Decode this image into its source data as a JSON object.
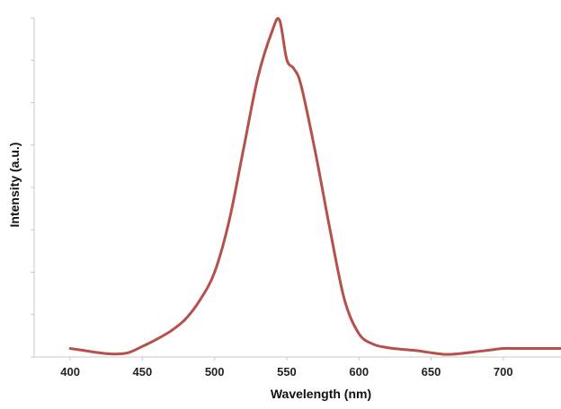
{
  "chart_data": {
    "type": "line",
    "title": "",
    "xlabel": "Wavelength (nm)",
    "ylabel": "Intensity (a.u.)",
    "xlim": [
      375,
      740
    ],
    "ylim": [
      0,
      8
    ],
    "x_ticks": [
      "400",
      "450",
      "500",
      "550",
      "600",
      "650",
      "700"
    ],
    "y_ticks_labeled": false,
    "grid": false,
    "legend": "none",
    "series": [
      {
        "color": "#b5504b",
        "x": [
          400,
          410,
          420,
          430,
          440,
          450,
          460,
          470,
          480,
          490,
          500,
          510,
          520,
          530,
          540,
          545,
          550,
          555,
          560,
          570,
          580,
          590,
          600,
          610,
          620,
          630,
          640,
          650,
          660,
          670,
          680,
          690,
          700,
          710,
          720,
          740
        ],
        "y": [
          0.2,
          0.15,
          0.1,
          0.07,
          0.1,
          0.25,
          0.42,
          0.62,
          0.9,
          1.35,
          2.0,
          3.2,
          4.9,
          6.6,
          7.7,
          7.95,
          7.02,
          6.8,
          6.4,
          4.8,
          3.0,
          1.35,
          0.55,
          0.3,
          0.22,
          0.18,
          0.15,
          0.1,
          0.06,
          0.08,
          0.12,
          0.16,
          0.2,
          0.2,
          0.2,
          0.2
        ]
      }
    ]
  }
}
